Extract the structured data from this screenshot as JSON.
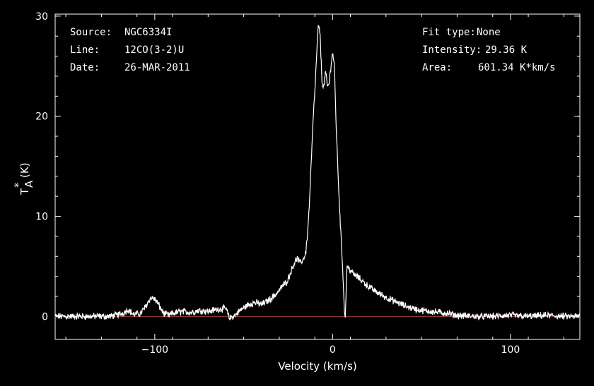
{
  "chart_data": {
    "type": "line",
    "info_left": [
      {
        "key": "Source:",
        "value": "NGC6334I"
      },
      {
        "key": "Line:",
        "value": "12CO(3-2)U"
      },
      {
        "key": "Date:",
        "value": "26-MAR-2011"
      }
    ],
    "info_right": [
      {
        "key": "Fit type:",
        "value": "None"
      },
      {
        "key": "Intensity:",
        "value": "29.36 K"
      },
      {
        "key": "Area:",
        "value": "601.34 K*km/s"
      }
    ],
    "xlabel": "Velocity (km/s)",
    "ylabel_main": "T",
    "ylabel_sub": "A",
    "ylabel_sup": "*",
    "ylabel_unit": "(K)",
    "xlim": [
      -156,
      139
    ],
    "ylim": [
      -2.3,
      30.2
    ],
    "x_ticks": [
      {
        "value": -100,
        "label": "−100"
      },
      {
        "value": 0,
        "label": "0"
      },
      {
        "value": 100,
        "label": "100"
      }
    ],
    "y_ticks": [
      {
        "value": 0,
        "label": "0"
      },
      {
        "value": 10,
        "label": "10"
      },
      {
        "value": 20,
        "label": "20"
      },
      {
        "value": 30,
        "label": "30"
      }
    ],
    "baseline": 0,
    "colors": {
      "spectrum": "#ffffff",
      "baseline": "#e02020",
      "axes": "#ffffff",
      "background": "#000000"
    },
    "series": [
      {
        "x": [
          -156,
          -140,
          -125,
          -118,
          -115,
          -112,
          -108,
          -105,
          -103,
          -101,
          -99,
          -95,
          -92,
          -90,
          -85,
          -80,
          -75,
          -70,
          -65,
          -60,
          -58,
          -55,
          -52,
          -48,
          -44,
          -40,
          -36,
          -32,
          -30,
          -28,
          -26,
          -24,
          -22,
          -20,
          -18,
          -16,
          -15,
          -14,
          -13,
          -12,
          -11,
          -10,
          -9,
          -8,
          -7,
          -6,
          -5,
          -4,
          -3,
          -2,
          -1,
          0,
          1,
          2,
          3,
          4,
          5,
          6,
          6.5,
          7,
          7.5,
          8,
          9,
          10,
          12,
          15,
          20,
          25,
          30,
          35,
          40,
          45,
          50,
          55,
          60,
          65,
          70,
          80,
          90,
          100,
          110,
          120,
          130,
          139
        ],
        "y": [
          0,
          0,
          0,
          0.3,
          0.7,
          0.2,
          0.3,
          1.0,
          1.7,
          1.9,
          1.5,
          0.3,
          0.1,
          0.3,
          0.5,
          0.4,
          0.6,
          0.5,
          0.7,
          0.8,
          -0.2,
          0.1,
          0.6,
          1.1,
          1.4,
          1.2,
          1.6,
          2.2,
          2.6,
          3.1,
          3.4,
          4.2,
          5.2,
          5.8,
          5.3,
          5.9,
          6.5,
          8.5,
          11.5,
          15.5,
          19.5,
          22.5,
          26.0,
          29.2,
          28.0,
          23.5,
          22.8,
          24.5,
          23.0,
          23.2,
          25.0,
          26.4,
          25.0,
          19.0,
          14.5,
          10.5,
          7.0,
          3.5,
          1.0,
          -0.4,
          2.0,
          5.0,
          4.8,
          4.6,
          4.2,
          3.8,
          3.0,
          2.4,
          1.9,
          1.5,
          1.1,
          0.8,
          0.6,
          0.5,
          0.4,
          0.3,
          0.1,
          0,
          0,
          0.1,
          0,
          0.1,
          0,
          0
        ]
      }
    ]
  }
}
